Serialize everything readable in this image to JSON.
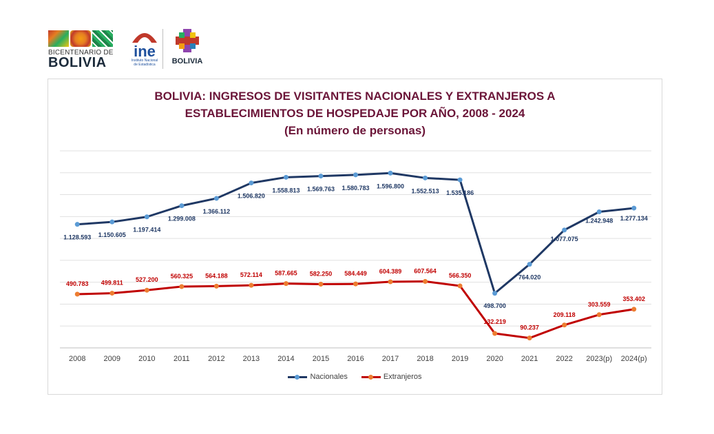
{
  "logos": {
    "bicentenario_small": "BICENTENARIO DE",
    "bicentenario_big": "BOLIVIA",
    "ine_word": "ine",
    "ine_sub1": "Instituto Nacional",
    "ine_sub2": "de Estadística",
    "estado_word": "BOLIVIA"
  },
  "chart_data": {
    "type": "line",
    "title": [
      "BOLIVIA: INGRESOS DE VISITANTES NACIONALES Y EXTRANJEROS A",
      "ESTABLECIMIENTOS DE HOSPEDAJE POR AÑO, 2008 - 2024",
      "(En número de personas)"
    ],
    "categories": [
      "2008",
      "2009",
      "2010",
      "2011",
      "2012",
      "2013",
      "2014",
      "2015",
      "2016",
      "2017",
      "2018",
      "2019",
      "2020",
      "2021",
      "2022",
      "2023(p)",
      "2024(p)"
    ],
    "ylim": [
      0,
      1800000
    ],
    "grid": true,
    "legend_position": "bottom",
    "series": [
      {
        "name": "Nacionales",
        "color": "#1f3864",
        "marker_color": "#5b9bd5",
        "label_color": "#1f3864",
        "values": [
          1128593,
          1150605,
          1197414,
          1299008,
          1366112,
          1506820,
          1558813,
          1569763,
          1580783,
          1596800,
          1552513,
          1535186,
          498700,
          764020,
          1077075,
          1242948,
          1277134
        ],
        "labels": [
          "1.128.593",
          "1.150.605",
          "1.197.414",
          "1.299.008",
          "1.366.112",
          "1.506.820",
          "1.558.813",
          "1.569.763",
          "1.580.783",
          "1.596.800",
          "1.552.513",
          "1.535.186",
          "498.700",
          "764.020",
          "1.077.075",
          "1.242.948",
          "1.277.134"
        ]
      },
      {
        "name": "Extranjeros",
        "color": "#c00000",
        "marker_color": "#ed7d31",
        "label_color": "#c00000",
        "values": [
          490783,
          499811,
          527200,
          560325,
          564188,
          572114,
          587665,
          582250,
          584449,
          604389,
          607564,
          566350,
          132219,
          90237,
          209118,
          303559,
          353402
        ],
        "labels": [
          "490.783",
          "499.811",
          "527.200",
          "560.325",
          "564.188",
          "572.114",
          "587.665",
          "582.250",
          "584.449",
          "604.389",
          "607.564",
          "566.350",
          "132.219",
          "90.237",
          "209.118",
          "303.559",
          "353.402"
        ]
      }
    ]
  }
}
